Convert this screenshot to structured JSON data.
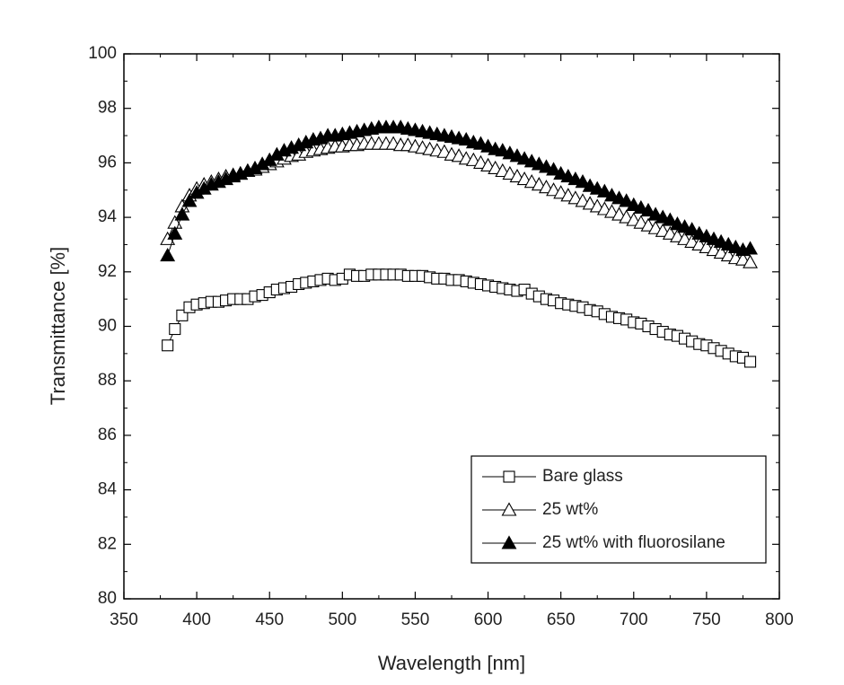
{
  "chart_data": {
    "type": "line",
    "x_label": "Wavelength [nm]",
    "y_label": "Transmittance [%]",
    "xlim": [
      350,
      800
    ],
    "xticks": [
      350,
      400,
      450,
      500,
      550,
      600,
      650,
      700,
      750,
      800
    ],
    "ylim": [
      80,
      100
    ],
    "yticks": [
      80,
      82,
      84,
      86,
      88,
      90,
      92,
      94,
      96,
      98,
      100
    ],
    "grid": false,
    "legend": "lower right",
    "x": [
      380,
      385,
      390,
      395,
      400,
      405,
      410,
      415,
      420,
      425,
      430,
      435,
      440,
      445,
      450,
      455,
      460,
      465,
      470,
      475,
      480,
      485,
      490,
      495,
      500,
      505,
      510,
      515,
      520,
      525,
      530,
      535,
      540,
      545,
      550,
      555,
      560,
      565,
      570,
      575,
      580,
      585,
      590,
      595,
      600,
      605,
      610,
      615,
      620,
      625,
      630,
      635,
      640,
      645,
      650,
      655,
      660,
      665,
      670,
      675,
      680,
      685,
      690,
      695,
      700,
      705,
      710,
      715,
      720,
      725,
      730,
      735,
      740,
      745,
      750,
      755,
      760,
      765,
      770,
      775,
      780
    ],
    "series": [
      {
        "name": "Bare glass",
        "color": "#000000",
        "marker": "square",
        "filled": false,
        "values": [
          89.3,
          89.9,
          90.4,
          90.7,
          90.8,
          90.85,
          90.9,
          90.9,
          90.95,
          91.0,
          91.0,
          91.0,
          91.1,
          91.15,
          91.25,
          91.35,
          91.4,
          91.45,
          91.55,
          91.6,
          91.65,
          91.7,
          91.75,
          91.7,
          91.75,
          91.9,
          91.85,
          91.85,
          91.9,
          91.9,
          91.9,
          91.9,
          91.9,
          91.85,
          91.85,
          91.85,
          91.8,
          91.75,
          91.75,
          91.7,
          91.7,
          91.65,
          91.6,
          91.55,
          91.5,
          91.45,
          91.4,
          91.35,
          91.3,
          91.35,
          91.2,
          91.1,
          91.0,
          90.95,
          90.85,
          90.8,
          90.75,
          90.7,
          90.6,
          90.55,
          90.45,
          90.35,
          90.3,
          90.25,
          90.15,
          90.1,
          90.0,
          89.9,
          89.8,
          89.7,
          89.65,
          89.55,
          89.45,
          89.35,
          89.3,
          89.2,
          89.1,
          89.0,
          88.9,
          88.85,
          88.7
        ]
      },
      {
        "name": "25 wt%",
        "color": "#000000",
        "marker": "triangle",
        "filled": false,
        "values": [
          93.2,
          93.8,
          94.4,
          94.8,
          95.05,
          95.2,
          95.3,
          95.4,
          95.5,
          95.55,
          95.6,
          95.7,
          95.75,
          95.85,
          95.95,
          96.05,
          96.15,
          96.25,
          96.3,
          96.4,
          96.45,
          96.5,
          96.55,
          96.6,
          96.6,
          96.65,
          96.65,
          96.7,
          96.7,
          96.7,
          96.7,
          96.7,
          96.65,
          96.65,
          96.6,
          96.55,
          96.5,
          96.45,
          96.4,
          96.3,
          96.25,
          96.15,
          96.1,
          96.0,
          95.9,
          95.8,
          95.7,
          95.6,
          95.5,
          95.4,
          95.3,
          95.2,
          95.1,
          95.0,
          94.9,
          94.8,
          94.7,
          94.6,
          94.5,
          94.4,
          94.3,
          94.2,
          94.1,
          94.0,
          93.9,
          93.8,
          93.7,
          93.6,
          93.5,
          93.4,
          93.3,
          93.2,
          93.1,
          93.0,
          92.9,
          92.8,
          92.7,
          92.6,
          92.5,
          92.45,
          92.35
        ]
      },
      {
        "name": "25 wt% with fluorosilane",
        "color": "#000000",
        "marker": "triangle",
        "filled": true,
        "values": [
          92.6,
          93.4,
          94.1,
          94.6,
          94.9,
          95.05,
          95.2,
          95.3,
          95.4,
          95.5,
          95.6,
          95.7,
          95.8,
          95.95,
          96.1,
          96.3,
          96.45,
          96.55,
          96.65,
          96.75,
          96.85,
          96.9,
          97.0,
          97.0,
          97.05,
          97.1,
          97.15,
          97.2,
          97.25,
          97.3,
          97.3,
          97.3,
          97.3,
          97.25,
          97.2,
          97.15,
          97.1,
          97.05,
          97.0,
          96.95,
          96.9,
          96.85,
          96.75,
          96.7,
          96.6,
          96.5,
          96.45,
          96.35,
          96.25,
          96.15,
          96.05,
          95.95,
          95.85,
          95.75,
          95.6,
          95.5,
          95.4,
          95.3,
          95.15,
          95.05,
          94.95,
          94.8,
          94.7,
          94.6,
          94.45,
          94.35,
          94.25,
          94.1,
          94.0,
          93.9,
          93.75,
          93.65,
          93.55,
          93.4,
          93.3,
          93.2,
          93.1,
          93.0,
          92.9,
          92.8,
          92.85
        ]
      }
    ]
  }
}
